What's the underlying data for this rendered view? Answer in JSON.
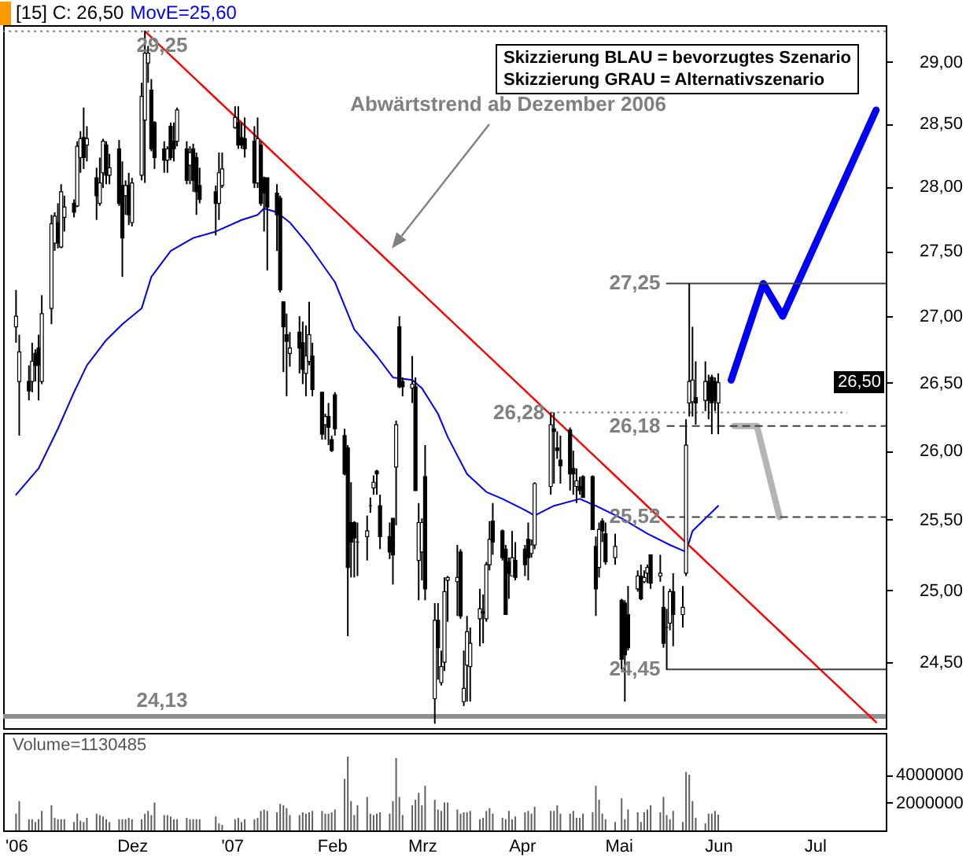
{
  "chart_data": [
    {
      "type": "candlestick",
      "title": "[15] C: 26,50",
      "legend": "top left",
      "log": "y",
      "x": [
        "2006-10-26",
        "2006-10-27",
        "2006-10-30",
        "2006-10-31",
        "2006-11-01",
        "2006-11-02",
        "2006-11-03",
        "2006-11-06",
        "2006-11-07",
        "2006-11-08",
        "2006-11-09",
        "2006-11-10",
        "2006-11-13",
        "2006-11-14",
        "2006-11-15",
        "2006-11-16",
        "2006-11-17",
        "2006-11-20",
        "2006-11-21",
        "2006-11-22",
        "2006-11-23",
        "2006-11-24",
        "2006-11-27",
        "2006-11-28",
        "2006-11-29",
        "2006-11-30",
        "2006-12-01",
        "2006-12-04",
        "2006-12-05",
        "2006-12-06",
        "2006-12-07",
        "2006-12-08",
        "2006-12-11",
        "2006-12-12",
        "2006-12-13",
        "2006-12-14",
        "2006-12-15",
        "2006-12-18",
        "2006-12-19",
        "2006-12-20",
        "2006-12-21",
        "2006-12-22",
        "2006-12-27",
        "2006-12-28",
        "2006-12-29",
        "2007-01-02",
        "2007-01-03",
        "2007-01-04",
        "2007-01-05",
        "2007-01-08",
        "2007-01-09",
        "2007-01-10",
        "2007-01-11",
        "2007-01-12",
        "2007-01-15",
        "2007-01-16",
        "2007-01-17",
        "2007-01-18",
        "2007-01-19",
        "2007-01-22",
        "2007-01-23",
        "2007-01-24",
        "2007-01-25",
        "2007-01-26",
        "2007-01-29",
        "2007-01-30",
        "2007-01-31",
        "2007-02-01",
        "2007-02-02",
        "2007-02-05",
        "2007-02-06",
        "2007-02-07",
        "2007-02-08",
        "2007-02-09",
        "2007-02-12",
        "2007-02-13",
        "2007-02-14",
        "2007-02-15",
        "2007-02-16",
        "2007-02-19",
        "2007-02-20",
        "2007-02-21",
        "2007-02-22",
        "2007-02-23",
        "2007-02-26",
        "2007-02-27",
        "2007-02-28",
        "2007-03-01",
        "2007-03-02",
        "2007-03-05",
        "2007-03-06",
        "2007-03-07",
        "2007-03-08",
        "2007-03-09",
        "2007-03-12",
        "2007-03-13",
        "2007-03-14",
        "2007-03-15",
        "2007-03-16",
        "2007-03-19",
        "2007-03-20",
        "2007-03-21",
        "2007-03-22",
        "2007-03-23",
        "2007-03-26",
        "2007-03-27",
        "2007-03-28",
        "2007-03-29",
        "2007-03-30",
        "2007-04-02",
        "2007-04-03",
        "2007-04-04",
        "2007-04-05",
        "2007-04-10",
        "2007-04-11",
        "2007-04-12",
        "2007-04-13",
        "2007-04-16",
        "2007-04-17",
        "2007-04-18",
        "2007-04-19",
        "2007-04-20",
        "2007-04-23",
        "2007-04-24",
        "2007-04-25",
        "2007-04-26",
        "2007-04-27",
        "2007-04-30",
        "2007-05-02",
        "2007-05-03",
        "2007-05-04",
        "2007-05-07",
        "2007-05-08",
        "2007-05-09",
        "2007-05-10",
        "2007-05-11",
        "2007-05-14",
        "2007-05-15",
        "2007-05-16",
        "2007-05-17",
        "2007-05-18",
        "2007-05-21",
        "2007-05-22",
        "2007-05-23",
        "2007-05-24",
        "2007-05-25",
        "2007-05-28",
        "2007-05-29",
        "2007-05-30",
        "2007-05-31",
        "2007-06-01"
      ],
      "ohlc": [
        [
          26.92,
          27.2,
          26.8,
          27.0
        ],
        [
          26.51,
          26.86,
          26.11,
          26.73
        ],
        [
          26.51,
          26.63,
          26.37,
          26.44
        ],
        [
          26.51,
          26.8,
          26.43,
          26.66
        ],
        [
          26.72,
          26.75,
          26.51,
          26.63
        ],
        [
          26.76,
          26.86,
          26.37,
          26.63
        ],
        [
          26.51,
          27.16,
          26.49,
          27.02
        ],
        [
          27.06,
          27.78,
          26.94,
          27.71
        ],
        [
          27.56,
          27.8,
          27.5,
          27.77
        ],
        [
          27.72,
          27.87,
          27.52,
          27.56
        ],
        [
          27.53,
          28.02,
          27.52,
          27.96
        ],
        [
          27.76,
          27.93,
          27.65,
          27.84
        ],
        [
          27.87,
          27.9,
          27.76,
          27.8
        ],
        [
          27.85,
          28.36,
          27.84,
          28.32
        ],
        [
          28.23,
          28.44,
          28.11,
          28.38
        ],
        [
          28.39,
          28.63,
          28.14,
          28.23
        ],
        [
          28.33,
          28.48,
          28.2,
          28.38
        ],
        [
          28.07,
          28.15,
          27.74,
          27.93
        ],
        [
          27.87,
          28.23,
          27.85,
          28.03
        ],
        [
          28.11,
          28.38,
          27.99,
          28.36
        ],
        [
          28.33,
          28.36,
          28.02,
          28.09
        ],
        [
          28.09,
          28.26,
          28.02,
          28.15
        ],
        [
          28.3,
          28.37,
          27.85,
          27.87
        ],
        [
          28.01,
          28.2,
          27.3,
          27.6
        ],
        [
          27.93,
          28.05,
          27.78,
          28.01
        ],
        [
          28.01,
          28.11,
          27.7,
          27.78
        ],
        [
          27.72,
          28.07,
          27.69,
          28.03
        ],
        [
          28.09,
          28.83,
          28.05,
          28.72
        ],
        [
          28.53,
          29.25,
          28.03,
          29.07
        ],
        [
          28.99,
          29.13,
          28.83,
          29.07
        ],
        [
          28.77,
          28.86,
          28.28,
          28.3
        ],
        [
          28.51,
          28.52,
          28.14,
          28.23
        ],
        [
          28.3,
          28.36,
          28.11,
          28.21
        ],
        [
          28.21,
          28.32,
          28.11,
          28.3
        ],
        [
          28.48,
          28.51,
          28.21,
          28.23
        ],
        [
          28.36,
          28.51,
          28.2,
          28.3
        ],
        [
          28.36,
          28.63,
          28.32,
          28.61
        ],
        [
          28.3,
          28.36,
          28.02,
          28.05
        ],
        [
          28.17,
          28.32,
          28.02,
          28.27
        ],
        [
          28.3,
          28.34,
          27.96,
          28.05
        ],
        [
          28.23,
          28.27,
          27.78,
          27.96
        ],
        [
          28.01,
          28.15,
          27.87,
          27.9
        ],
        [
          27.96,
          28.01,
          27.62,
          27.87
        ],
        [
          27.87,
          28.27,
          27.74,
          28.11
        ],
        [
          28.01,
          28.27,
          27.99,
          28.14
        ],
        [
          28.47,
          28.64,
          28.46,
          28.55
        ],
        [
          28.51,
          28.64,
          28.3,
          28.33
        ],
        [
          28.39,
          28.51,
          28.3,
          28.33
        ],
        [
          28.38,
          28.55,
          28.23,
          28.3
        ],
        [
          28.36,
          28.48,
          27.99,
          28.03
        ],
        [
          28.03,
          28.55,
          27.99,
          28.38
        ],
        [
          28.33,
          28.36,
          27.85,
          27.87
        ],
        [
          28.07,
          28.08,
          27.65,
          27.95
        ],
        [
          28.07,
          28.07,
          27.35,
          27.84
        ],
        [
          27.95,
          28.02,
          27.5,
          27.78
        ],
        [
          27.91,
          27.93,
          27.18,
          27.2
        ],
        [
          27.11,
          27.11,
          26.58,
          26.92
        ],
        [
          26.86,
          27.02,
          26.4,
          26.81
        ],
        [
          26.72,
          26.88,
          26.62,
          26.76
        ],
        [
          26.88,
          27.0,
          26.57,
          26.76
        ],
        [
          26.8,
          26.96,
          26.49,
          26.6
        ],
        [
          26.57,
          26.93,
          26.4,
          26.7
        ],
        [
          26.66,
          27.11,
          26.63,
          26.86
        ],
        [
          26.7,
          26.8,
          26.4,
          26.45
        ],
        [
          26.43,
          26.43,
          26.08,
          26.12
        ],
        [
          26.19,
          26.27,
          26.08,
          26.25
        ],
        [
          26.25,
          26.35,
          26.04,
          26.17
        ],
        [
          26.08,
          26.11,
          25.99,
          26.0
        ],
        [
          26.41,
          26.43,
          26.11,
          26.16
        ],
        [
          26.11,
          26.16,
          25.82,
          25.83
        ],
        [
          26.02,
          26.04,
          24.68,
          25.16
        ],
        [
          25.48,
          25.77,
          25.09,
          25.34
        ],
        [
          25.48,
          25.49,
          25.09,
          25.37
        ],
        [
          25.34,
          25.48,
          25.1,
          25.34
        ],
        [
          25.38,
          25.53,
          25.21,
          25.42
        ],
        [
          25.6,
          25.66,
          25.55,
          25.6
        ],
        [
          25.73,
          25.82,
          25.68,
          25.77
        ],
        [
          25.85,
          25.86,
          25.68,
          25.83
        ],
        [
          25.6,
          25.68,
          25.29,
          25.38
        ],
        [
          25.38,
          25.48,
          25.22,
          25.27
        ],
        [
          25.51,
          25.51,
          25.04,
          25.25
        ],
        [
          25.88,
          26.22,
          25.46,
          26.19
        ],
        [
          26.92,
          27.0,
          26.46,
          26.47
        ],
        [
          26.51,
          26.54,
          26.4,
          26.47
        ],
        [
          26.46,
          26.7,
          26.35,
          26.49
        ],
        [
          26.47,
          26.54,
          25.71,
          25.71
        ],
        [
          25.21,
          25.62,
          24.93,
          25.48
        ],
        [
          25.27,
          25.51,
          25.07,
          25.48
        ],
        [
          25.81,
          26.04,
          24.93,
          25.01
        ],
        [
          24.25,
          24.91,
          24.08,
          24.79
        ],
        [
          24.79,
          24.91,
          24.38,
          24.6
        ],
        [
          24.36,
          24.58,
          24.34,
          24.47
        ],
        [
          24.5,
          25.09,
          24.44,
          24.99
        ],
        [
          25.07,
          25.1,
          24.78,
          25.09
        ],
        [
          25.06,
          25.32,
          24.82,
          25.09
        ],
        [
          25.27,
          25.29,
          24.8,
          24.82
        ],
        [
          24.23,
          24.58,
          24.2,
          24.32
        ],
        [
          24.48,
          24.82,
          24.23,
          24.71
        ],
        [
          24.47,
          24.74,
          24.23,
          24.63
        ],
        [
          24.8,
          25.01,
          24.61,
          24.87
        ],
        [
          24.85,
          24.97,
          24.63,
          24.84
        ],
        [
          24.8,
          25.2,
          24.78,
          25.18
        ],
        [
          25.18,
          25.49,
          25.14,
          25.36
        ],
        [
          25.49,
          25.62,
          25.25,
          25.34
        ],
        [
          25.42,
          25.43,
          25.21,
          25.23
        ],
        [
          25.29,
          25.32,
          24.83,
          24.83
        ],
        [
          25.2,
          25.23,
          24.94,
          25.12
        ],
        [
          25.1,
          25.42,
          25.1,
          25.23
        ],
        [
          25.21,
          25.34,
          25.07,
          25.09
        ],
        [
          25.29,
          25.32,
          25.1,
          25.18
        ],
        [
          25.36,
          25.48,
          25.07,
          25.23
        ],
        [
          25.26,
          25.36,
          25.23,
          25.32
        ],
        [
          25.32,
          25.77,
          25.29,
          25.76
        ],
        [
          25.74,
          26.28,
          25.68,
          26.19
        ],
        [
          26.16,
          26.28,
          25.76,
          26.14
        ],
        [
          26.02,
          26.14,
          25.94,
          26.0
        ],
        [
          25.93,
          26.11,
          25.76,
          25.89
        ],
        [
          26.15,
          26.17,
          25.71,
          25.83
        ],
        [
          25.87,
          26.0,
          25.68,
          25.83
        ],
        [
          25.74,
          25.87,
          25.62,
          25.78
        ],
        [
          25.74,
          25.81,
          25.68,
          25.71
        ],
        [
          25.81,
          25.82,
          25.66,
          25.66
        ],
        [
          25.81,
          25.82,
          25.43,
          25.43
        ],
        [
          25.31,
          25.38,
          24.82,
          25.01
        ],
        [
          25.16,
          25.48,
          25.09,
          25.43
        ],
        [
          25.49,
          25.51,
          25.34,
          25.42
        ],
        [
          25.4,
          25.48,
          25.18,
          25.2
        ],
        [
          25.23,
          25.4,
          25.18,
          25.31
        ],
        [
          24.93,
          24.94,
          24.45,
          24.52
        ],
        [
          24.91,
          24.93,
          24.23,
          24.55
        ],
        [
          24.83,
          25.03,
          24.58,
          24.6
        ],
        [
          25.01,
          25.14,
          24.99,
          25.1
        ],
        [
          25.1,
          25.18,
          24.93,
          24.94
        ],
        [
          25.06,
          25.14,
          25.05,
          25.09
        ],
        [
          25.12,
          25.18,
          25.05,
          25.16
        ],
        [
          25.25,
          25.25,
          25.01,
          25.05
        ],
        [
          25.1,
          25.25,
          25.06,
          25.12
        ],
        [
          24.88,
          25.03,
          24.6,
          24.63
        ],
        [
          24.74,
          24.87,
          24.45,
          24.74
        ],
        [
          24.77,
          25.01,
          24.72,
          24.99
        ],
        [
          24.99,
          25.12,
          24.61,
          24.83
        ],
        [
          24.83,
          25.03,
          24.74,
          24.88
        ],
        [
          25.12,
          26.23,
          25.1,
          26.04
        ],
        [
          26.35,
          27.25,
          26.25,
          26.51
        ],
        [
          26.36,
          26.92,
          26.25,
          26.52
        ],
        [
          26.39,
          26.66,
          26.19,
          26.35
        ],
        [
          26.37,
          26.66,
          26.29,
          26.51
        ],
        [
          26.51,
          26.56,
          26.23,
          26.37
        ],
        [
          26.54,
          26.56,
          26.12,
          26.35
        ],
        [
          26.51,
          26.54,
          26.29,
          26.37
        ],
        [
          26.35,
          26.57,
          26.12,
          26.5
        ]
      ],
      "xlim": [
        "2006-10-22",
        "2007-07-23"
      ],
      "ylim": [
        24.05,
        29.3
      ],
      "yticks": [
        {
          "value": 24.5,
          "label": "24,50"
        },
        {
          "value": 25,
          "label": "25,00"
        },
        {
          "value": 25.5,
          "label": "25,50"
        },
        {
          "value": 26,
          "label": "26,00"
        },
        {
          "value": 26.5,
          "label": "26,50"
        },
        {
          "value": 27,
          "label": "27,00"
        },
        {
          "value": 27.5,
          "label": "27,50"
        },
        {
          "value": 28,
          "label": "28,00"
        },
        {
          "value": 28.5,
          "label": "28,50"
        },
        {
          "value": 29,
          "label": "29,00"
        }
      ],
      "tick_labels": "y",
      "series": [
        {
          "type": "line",
          "name": "MovE=25,60",
          "color": "#0000ff",
          "x": [
            "2006-10-26",
            "2006-11-02",
            "2006-11-08",
            "2006-11-13",
            "2006-11-17",
            "2006-11-23",
            "2006-11-28",
            "2006-12-04",
            "2006-12-07",
            "2006-12-13",
            "2006-12-20",
            "2006-12-27",
            "2007-01-04",
            "2007-01-09",
            "2007-01-11",
            "2007-01-15",
            "2007-01-19",
            "2007-01-25",
            "2007-02-02",
            "2007-02-08",
            "2007-02-15",
            "2007-02-20",
            "2007-02-26",
            "2007-03-01",
            "2007-03-06",
            "2007-03-09",
            "2007-03-15",
            "2007-03-21",
            "2007-03-26",
            "2007-04-02",
            "2007-04-05",
            "2007-04-11",
            "2007-04-19",
            "2007-04-24",
            "2007-05-02",
            "2007-05-10",
            "2007-05-17",
            "2007-05-22",
            "2007-05-24",
            "2007-06-01"
          ],
          "values": [
            25.68,
            25.87,
            26.16,
            26.43,
            26.63,
            26.82,
            26.94,
            27.06,
            27.3,
            27.5,
            27.6,
            27.65,
            27.74,
            27.78,
            27.83,
            27.8,
            27.72,
            27.54,
            27.26,
            26.9,
            26.7,
            26.54,
            26.52,
            26.46,
            26.27,
            26.1,
            25.83,
            25.7,
            25.65,
            25.57,
            25.53,
            25.6,
            25.65,
            25.6,
            25.51,
            25.4,
            25.32,
            25.27,
            25.42,
            25.6
          ]
        },
        {
          "type": "line",
          "color": "#ff0000",
          "x": [
            "2006-12-05",
            "2007-07-20"
          ],
          "values": [
            29.25,
            24.09
          ]
        },
        {
          "type": "line",
          "color": "#0000ff",
          "x": [
            "2007-06-05",
            "2007-06-15",
            "2007-06-21",
            "2007-07-20"
          ],
          "values": [
            26.52,
            27.25,
            27.0,
            28.61
          ]
        },
        {
          "type": "line",
          "color": "#b4b4b4",
          "x": [
            "2007-06-06",
            "2007-06-13",
            "2007-06-20"
          ],
          "values": [
            26.18,
            26.18,
            25.52
          ]
        },
        {
          "type": "line",
          "color": "#404040",
          "x": [
            "2007-05-16",
            "2007-07-23"
          ],
          "values": [
            27.25,
            27.25
          ]
        },
        {
          "type": "line",
          "color": "#808080",
          "line_style": "dotted",
          "x": [
            "2007-04-10",
            "2007-07-11"
          ],
          "values": [
            26.28,
            26.28
          ]
        },
        {
          "type": "line",
          "color": "#404040",
          "line_style": "dashed",
          "x": [
            "2007-05-16",
            "2007-07-23"
          ],
          "values": [
            26.18,
            26.18
          ]
        },
        {
          "type": "line",
          "color": "#404040",
          "line_style": "dashed",
          "x": [
            "2007-05-16",
            "2007-07-23"
          ],
          "values": [
            25.52,
            25.52
          ]
        },
        {
          "type": "line",
          "color": "#404040",
          "x": [
            "2007-05-16",
            "2007-07-23"
          ],
          "values": [
            24.45,
            24.45
          ]
        }
      ],
      "ref_lines": [
        {
          "axis": "y",
          "value": 29.25,
          "label": "29,25",
          "color": "#808080",
          "line_style": "dotted"
        },
        {
          "axis": "y",
          "value": 24.13,
          "label": "24,13",
          "color": "#909090"
        }
      ],
      "annotations": [
        "Abwärtstrend ab Dezember 2006",
        {
          "text": "27,25",
          "x": "2007-05-16",
          "y": 27.25
        },
        {
          "text": "26,28",
          "x": "2007-04-10",
          "y": 26.28
        },
        {
          "text": "26,18",
          "x": "2007-05-16",
          "y": 26.18
        },
        {
          "text": "25,52",
          "x": "2007-05-16",
          "y": 25.52
        },
        {
          "text": "24,45",
          "x": "2007-05-16",
          "y": 24.45
        },
        "Skizzierung BLAU = bevorzugtes Szenario",
        "Skizzierung GRAU = Alternativszenario",
        {
          "text": "26,50",
          "y": 26.5
        }
      ]
    },
    {
      "type": "bar",
      "title": "Volume=1130485",
      "color": "#606060",
      "x": [
        "2006-10-26",
        "2006-10-27",
        "2006-10-30",
        "2006-10-31",
        "2006-11-01",
        "2006-11-02",
        "2006-11-03",
        "2006-11-06",
        "2006-11-07",
        "2006-11-08",
        "2006-11-09",
        "2006-11-10",
        "2006-11-13",
        "2006-11-14",
        "2006-11-15",
        "2006-11-16",
        "2006-11-17",
        "2006-11-20",
        "2006-11-21",
        "2006-11-22",
        "2006-11-23",
        "2006-11-24",
        "2006-11-27",
        "2006-11-28",
        "2006-11-29",
        "2006-11-30",
        "2006-12-01",
        "2006-12-04",
        "2006-12-05",
        "2006-12-06",
        "2006-12-07",
        "2006-12-08",
        "2006-12-11",
        "2006-12-12",
        "2006-12-13",
        "2006-12-14",
        "2006-12-15",
        "2006-12-18",
        "2006-12-19",
        "2006-12-20",
        "2006-12-21",
        "2006-12-22",
        "2006-12-27",
        "2006-12-28",
        "2006-12-29",
        "2007-01-02",
        "2007-01-03",
        "2007-01-04",
        "2007-01-05",
        "2007-01-08",
        "2007-01-09",
        "2007-01-10",
        "2007-01-11",
        "2007-01-12",
        "2007-01-15",
        "2007-01-16",
        "2007-01-17",
        "2007-01-18",
        "2007-01-19",
        "2007-01-22",
        "2007-01-23",
        "2007-01-24",
        "2007-01-25",
        "2007-01-26",
        "2007-01-29",
        "2007-01-30",
        "2007-01-31",
        "2007-02-01",
        "2007-02-02",
        "2007-02-05",
        "2007-02-06",
        "2007-02-07",
        "2007-02-08",
        "2007-02-09",
        "2007-02-12",
        "2007-02-13",
        "2007-02-14",
        "2007-02-15",
        "2007-02-16",
        "2007-02-19",
        "2007-02-20",
        "2007-02-21",
        "2007-02-22",
        "2007-02-23",
        "2007-02-26",
        "2007-02-27",
        "2007-02-28",
        "2007-03-01",
        "2007-03-02",
        "2007-03-05",
        "2007-03-06",
        "2007-03-07",
        "2007-03-08",
        "2007-03-09",
        "2007-03-12",
        "2007-03-13",
        "2007-03-14",
        "2007-03-15",
        "2007-03-16",
        "2007-03-19",
        "2007-03-20",
        "2007-03-21",
        "2007-03-22",
        "2007-03-23",
        "2007-03-26",
        "2007-03-27",
        "2007-03-28",
        "2007-03-29",
        "2007-03-30",
        "2007-04-02",
        "2007-04-03",
        "2007-04-04",
        "2007-04-05",
        "2007-04-10",
        "2007-04-11",
        "2007-04-12",
        "2007-04-13",
        "2007-04-16",
        "2007-04-17",
        "2007-04-18",
        "2007-04-19",
        "2007-04-20",
        "2007-04-23",
        "2007-04-24",
        "2007-04-25",
        "2007-04-26",
        "2007-04-27",
        "2007-04-30",
        "2007-05-02",
        "2007-05-03",
        "2007-05-04",
        "2007-05-07",
        "2007-05-08",
        "2007-05-09",
        "2007-05-10",
        "2007-05-11",
        "2007-05-14",
        "2007-05-15",
        "2007-05-16",
        "2007-05-17",
        "2007-05-18",
        "2007-05-21",
        "2007-05-22",
        "2007-05-23",
        "2007-05-24",
        "2007-05-25",
        "2007-05-28",
        "2007-05-29",
        "2007-05-30",
        "2007-05-31",
        "2007-06-01"
      ],
      "values": [
        1200000,
        2100000,
        800000,
        800000,
        600000,
        800000,
        1400000,
        1800000,
        900000,
        800000,
        800000,
        800000,
        600000,
        1200000,
        700000,
        600000,
        900000,
        1200000,
        1100000,
        1000000,
        800000,
        600000,
        800000,
        800000,
        800000,
        900000,
        800000,
        800000,
        1200000,
        1400000,
        1100000,
        2000000,
        1100000,
        1100000,
        1000000,
        800000,
        800000,
        900000,
        800000,
        800000,
        800000,
        800000,
        1000000,
        500000,
        400000,
        800000,
        900000,
        600000,
        800000,
        800000,
        900000,
        1400000,
        1500000,
        1400000,
        1300000,
        1900000,
        1800000,
        1600000,
        1100000,
        1100000,
        1300000,
        1200000,
        1300000,
        1400000,
        1400000,
        1200000,
        1200000,
        1300000,
        1500000,
        3700000,
        5300000,
        2100000,
        1100000,
        1800000,
        2400000,
        1200000,
        1100000,
        1200000,
        1300000,
        1200000,
        2100000,
        5200000,
        2400000,
        1100000,
        1800000,
        2200000,
        2700000,
        1800000,
        3200000,
        2200000,
        1500000,
        1400000,
        2000000,
        2000000,
        1500000,
        1200000,
        1300000,
        1300000,
        1400000,
        800000,
        900000,
        1400000,
        1600000,
        1200000,
        900000,
        800000,
        1400000,
        800000,
        1000000,
        1300000,
        1400000,
        1200000,
        1700000,
        1400000,
        1400000,
        1800000,
        1200000,
        1200000,
        1400000,
        900000,
        900000,
        1200000,
        1300000,
        3200000,
        2200000,
        1200000,
        800000,
        600000,
        2300000,
        800000,
        1500000,
        1300000,
        600000,
        1300000,
        1500000,
        1800000,
        1300000,
        2400000,
        1100000,
        800000,
        1400000,
        600000,
        4200000,
        4000000,
        2100000,
        900000,
        500000,
        1200000,
        1200000,
        1400000,
        1130485
      ],
      "xlim": [
        "2006-10-22",
        "2007-07-23"
      ],
      "xticks": [
        {
          "value": "2006-10-26",
          "label": "'06"
        },
        {
          "value": "2006-12-01",
          "label": "Dez"
        },
        {
          "value": "2007-01-01",
          "label": "'07"
        },
        {
          "value": "2007-02-01",
          "label": "Feb"
        },
        {
          "value": "2007-03-01",
          "label": "Mrz"
        },
        {
          "value": "2007-04-01",
          "label": "Apr"
        },
        {
          "value": "2007-05-01",
          "label": "Mai"
        },
        {
          "value": "2007-06-01",
          "label": "Jun"
        },
        {
          "value": "2007-07-01",
          "label": "Jul"
        }
      ],
      "ylim": [
        0,
        7000000
      ],
      "yticks": [
        2000000,
        4000000
      ]
    }
  ]
}
